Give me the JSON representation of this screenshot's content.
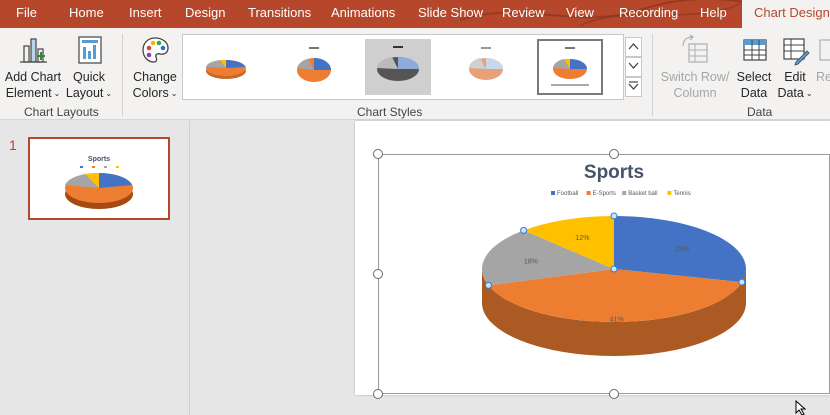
{
  "tabs": [
    "File",
    "Home",
    "Insert",
    "Design",
    "Transitions",
    "Animations",
    "Slide Show",
    "Review",
    "View",
    "Recording",
    "Help",
    "Chart Design"
  ],
  "active_tab": "Chart Design",
  "ribbon": {
    "add_chart_element": [
      "Add Chart",
      "Element"
    ],
    "quick_layout": [
      "Quick",
      "Layout"
    ],
    "change_colors": [
      "Change",
      "Colors"
    ],
    "switch_row_column": [
      "Switch Row/",
      "Column"
    ],
    "select_data": [
      "Select",
      "Data"
    ],
    "edit_data": [
      "Edit",
      "Data"
    ],
    "refresh_data_partial": "Re",
    "group_chart_layouts": "Chart Layouts",
    "group_chart_styles": "Chart Styles",
    "group_data": "Data"
  },
  "slide_pane": {
    "slide_number": "1"
  },
  "thumbnail": {
    "title": "Sports"
  },
  "chart_data": {
    "type": "pie",
    "title": "Sports",
    "legend_position": "top",
    "categories": [
      "Football",
      "E-Sports",
      "Basket ball",
      "Tennis"
    ],
    "values": [
      29,
      41,
      18,
      12
    ],
    "labels": [
      "29%",
      "41%",
      "18%",
      "12%"
    ],
    "colors": [
      "#4472c4",
      "#ed7d31",
      "#a5a5a5",
      "#ffc000"
    ]
  },
  "colors": {
    "accent": "#b7472a"
  }
}
